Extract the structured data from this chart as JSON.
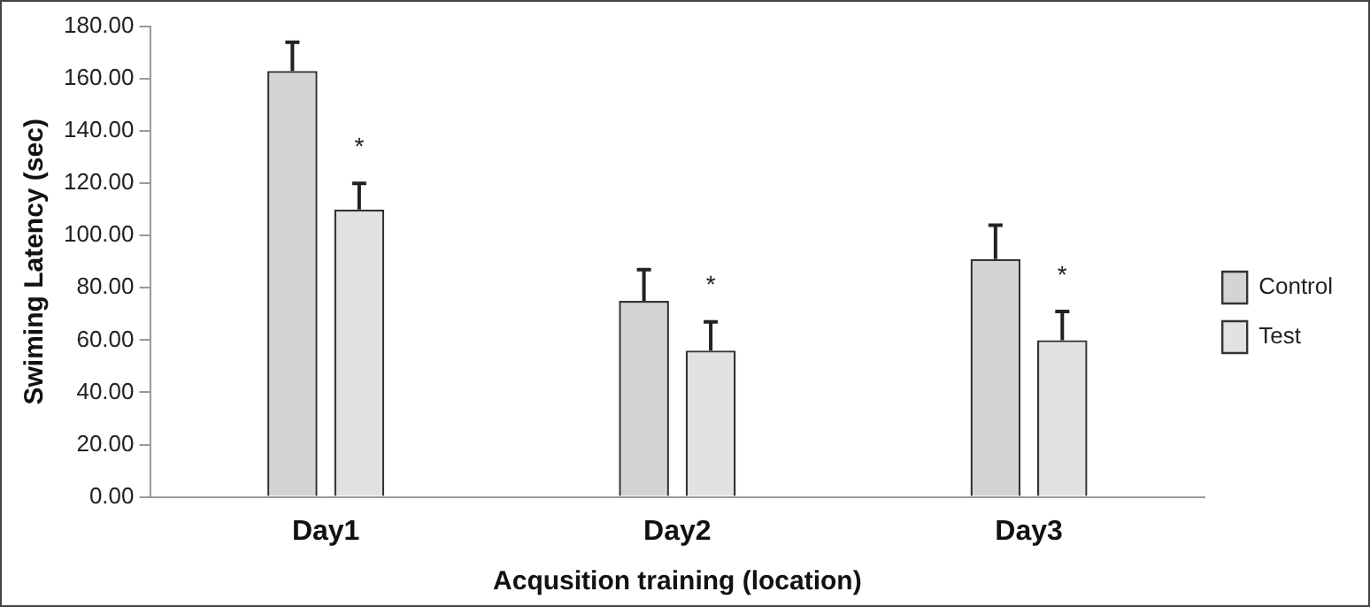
{
  "chart_data": {
    "type": "bar",
    "xlabel": "Acqusition training (location)",
    "ylabel": "Swiming Latency (sec)",
    "categories": [
      "Day1",
      "Day2",
      "Day3"
    ],
    "series": [
      {
        "name": "Control",
        "color": "#d4d4d4",
        "values": [
          163,
          75,
          91
        ],
        "errors": [
          [
            163,
            174
          ],
          [
            75,
            87
          ],
          [
            91,
            104
          ]
        ]
      },
      {
        "name": "Test",
        "color": "#e2e2e2",
        "values": [
          110,
          56,
          60
        ],
        "errors": [
          [
            110,
            120
          ],
          [
            56,
            67
          ],
          [
            60,
            71
          ]
        ]
      }
    ],
    "ylim": [
      0,
      180
    ],
    "yticks": [
      {
        "value": 0,
        "label": "0.00"
      },
      {
        "value": 20,
        "label": "20.00"
      },
      {
        "value": 40,
        "label": "40.00"
      },
      {
        "value": 60,
        "label": "60.00"
      },
      {
        "value": 80,
        "label": "80.00"
      },
      {
        "value": 100,
        "label": "100.00"
      },
      {
        "value": 120,
        "label": "120.00"
      },
      {
        "value": 140,
        "label": "140.00"
      },
      {
        "value": 160,
        "label": "160.00"
      },
      {
        "value": 180,
        "label": "180.00"
      }
    ],
    "annotations": [
      "*",
      "*",
      "*"
    ],
    "grid": false,
    "legend": "right"
  }
}
